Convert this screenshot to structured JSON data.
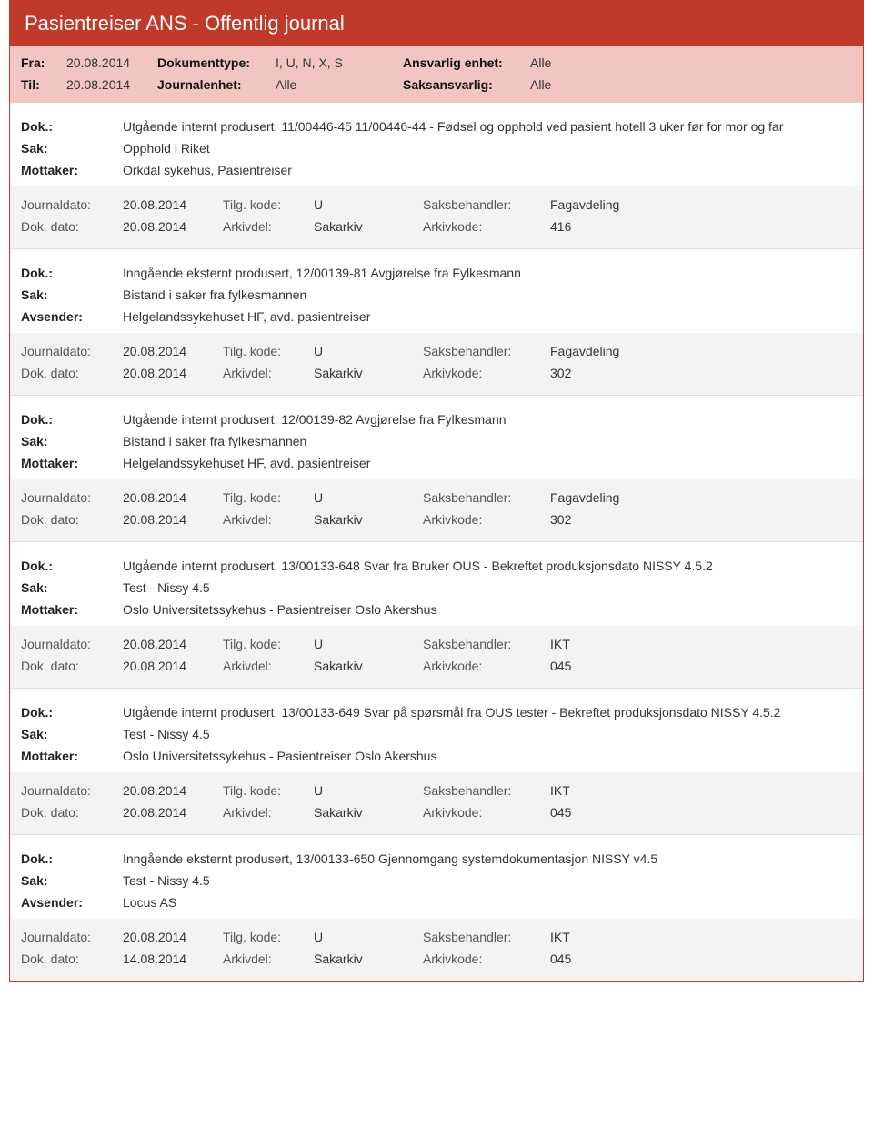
{
  "colors": {
    "brand": "#c0392b",
    "header_bg": "#f2c6c0",
    "footer_bg": "#f3f3f3",
    "text": "#333333",
    "label": "#222222"
  },
  "page_title": "Pasientreiser ANS - Offentlig journal",
  "header": {
    "fra_label": "Fra:",
    "fra_value": "20.08.2014",
    "til_label": "Til:",
    "til_value": "20.08.2014",
    "dokumenttype_label": "Dokumenttype:",
    "dokumenttype_value": "I, U, N, X, S",
    "journalenhet_label": "Journalenhet:",
    "journalenhet_value": "Alle",
    "ansvarlig_enhet_label": "Ansvarlig enhet:",
    "ansvarlig_enhet_value": "Alle",
    "saksansvarlig_label": "Saksansvarlig:",
    "saksansvarlig_value": "Alle"
  },
  "labels": {
    "dok": "Dok.:",
    "sak": "Sak:",
    "mottaker": "Mottaker:",
    "avsender": "Avsender:",
    "journaldato": "Journaldato:",
    "dokdato": "Dok. dato:",
    "tilgkode": "Tilg. kode:",
    "arkivdel": "Arkivdel:",
    "saksbehandler": "Saksbehandler:",
    "arkivkode": "Arkivkode:"
  },
  "entries": [
    {
      "dok": "Utgående internt produsert, 11/00446-45 11/00446-44 - Fødsel og opphold ved pasient hotell 3 uker før for mor og far",
      "sak": "Opphold i Riket",
      "party_label": "Mottaker:",
      "party": "Orkdal sykehus, Pasientreiser",
      "journaldato": "20.08.2014",
      "tilgkode": "U",
      "saksbehandler": "Fagavdeling",
      "dokdato": "20.08.2014",
      "arkivdel": "Sakarkiv",
      "arkivkode": "416"
    },
    {
      "dok": "Inngående eksternt produsert, 12/00139-81 Avgjørelse fra Fylkesmann",
      "sak": "Bistand i saker fra fylkesmannen",
      "party_label": "Avsender:",
      "party": "Helgelandssykehuset HF, avd. pasientreiser",
      "journaldato": "20.08.2014",
      "tilgkode": "U",
      "saksbehandler": "Fagavdeling",
      "dokdato": "20.08.2014",
      "arkivdel": "Sakarkiv",
      "arkivkode": "302"
    },
    {
      "dok": "Utgående internt produsert, 12/00139-82 Avgjørelse fra Fylkesmann",
      "sak": "Bistand i saker fra fylkesmannen",
      "party_label": "Mottaker:",
      "party": "Helgelandssykehuset HF, avd. pasientreiser",
      "journaldato": "20.08.2014",
      "tilgkode": "U",
      "saksbehandler": "Fagavdeling",
      "dokdato": "20.08.2014",
      "arkivdel": "Sakarkiv",
      "arkivkode": "302"
    },
    {
      "dok": "Utgående internt produsert, 13/00133-648 Svar fra Bruker OUS - Bekreftet produksjonsdato NISSY 4.5.2",
      "sak": "Test - Nissy 4.5",
      "party_label": "Mottaker:",
      "party": "Oslo Universitetssykehus - Pasientreiser Oslo Akershus",
      "journaldato": "20.08.2014",
      "tilgkode": "U",
      "saksbehandler": "IKT",
      "dokdato": "20.08.2014",
      "arkivdel": "Sakarkiv",
      "arkivkode": "045"
    },
    {
      "dok": "Utgående internt produsert, 13/00133-649 Svar på spørsmål fra OUS tester - Bekreftet produksjonsdato NISSY 4.5.2",
      "sak": "Test - Nissy 4.5",
      "party_label": "Mottaker:",
      "party": "Oslo Universitetssykehus - Pasientreiser Oslo Akershus",
      "journaldato": "20.08.2014",
      "tilgkode": "U",
      "saksbehandler": "IKT",
      "dokdato": "20.08.2014",
      "arkivdel": "Sakarkiv",
      "arkivkode": "045"
    },
    {
      "dok": "Inngående eksternt produsert, 13/00133-650 Gjennomgang systemdokumentasjon NISSY v4.5",
      "sak": "Test - Nissy 4.5",
      "party_label": "Avsender:",
      "party": "Locus AS",
      "journaldato": "20.08.2014",
      "tilgkode": "U",
      "saksbehandler": "IKT",
      "dokdato": "14.08.2014",
      "arkivdel": "Sakarkiv",
      "arkivkode": "045"
    }
  ]
}
